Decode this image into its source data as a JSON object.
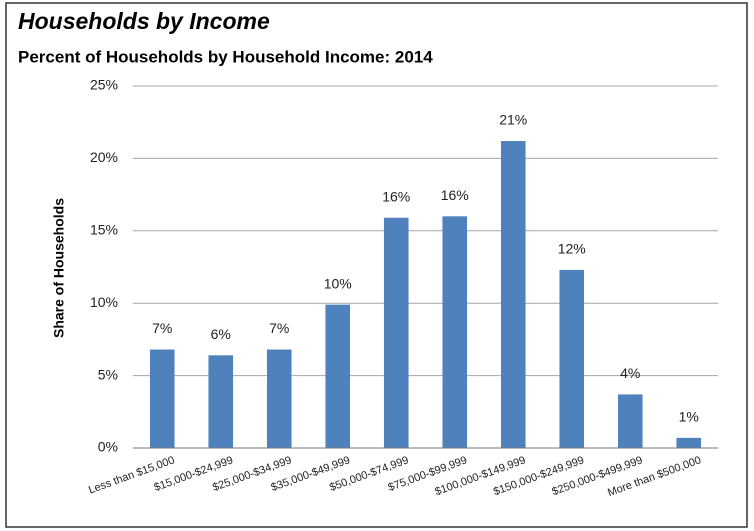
{
  "chart_data": {
    "type": "bar",
    "title": "Households by Income",
    "subtitle": "Percent of Households by Household Income: 2014",
    "y_label": "Share of Households",
    "categories": [
      "Less than $15,000",
      "$15,000-$24,999",
      "$25,000-$34,999",
      "$35,000-$49,999",
      "$50,000-$74,999",
      "$75,000-$99,999",
      "$100,000-$149,999",
      "$150,000-$249,999",
      "$250,000-$499,999",
      "More than $500,000"
    ],
    "values": [
      6.8,
      6.4,
      6.8,
      9.9,
      15.9,
      16.0,
      21.2,
      12.3,
      3.7,
      0.7
    ],
    "value_labels": [
      "7%",
      "6%",
      "7%",
      "10%",
      "16%",
      "16%",
      "21%",
      "12%",
      "4%",
      "1%"
    ],
    "color": "#4f81bd",
    "ylim": [
      0,
      25
    ],
    "yticks": [
      {
        "value": 0,
        "label": "0%"
      },
      {
        "value": 5,
        "label": "5%"
      },
      {
        "value": 10,
        "label": "10%"
      },
      {
        "value": 15,
        "label": "15%"
      },
      {
        "value": 20,
        "label": "20%"
      },
      {
        "value": 25,
        "label": "25%"
      }
    ],
    "grid": true
  }
}
